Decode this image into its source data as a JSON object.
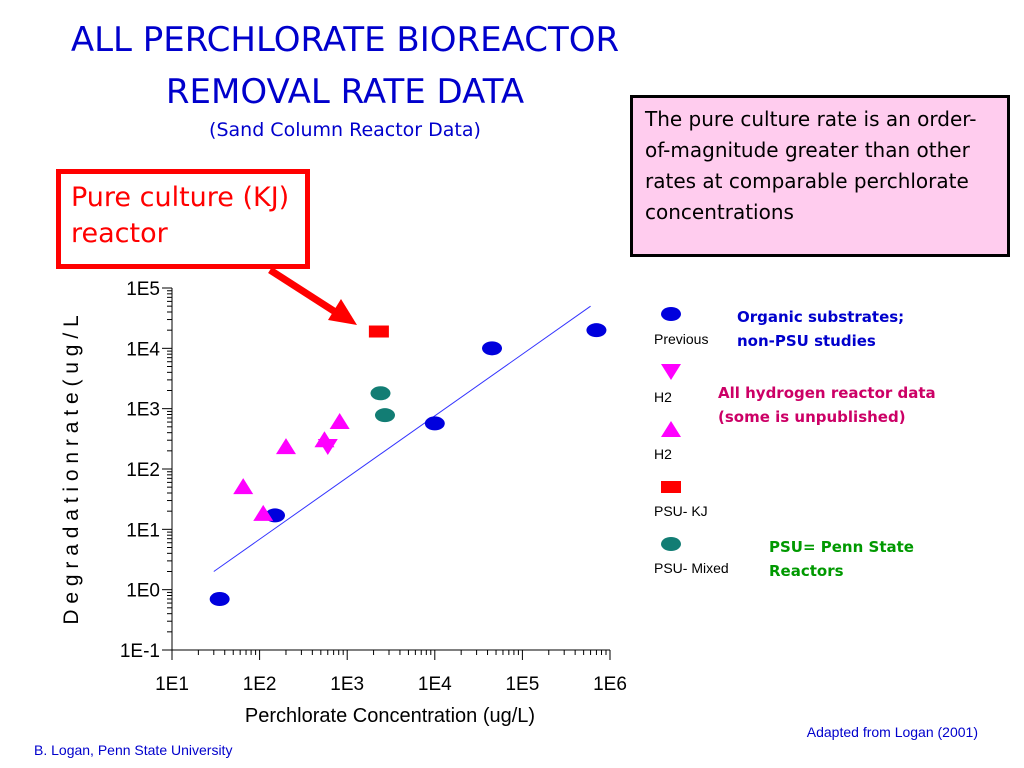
{
  "slide": {
    "title_line1": "ALL PERCHLORATE BIOREACTOR",
    "title_line2": "REMOVAL RATE DATA",
    "subtitle": "(Sand Column Reactor Data)",
    "note": "The pure culture rate is an order-of-magnitude greater than other rates at comparable perchlorate concentrations",
    "callout": "Pure culture (KJ) reactor",
    "credit": "Adapted from Logan (2001)",
    "footer": "B. Logan, Penn State University",
    "group_labels": {
      "organic": "Organic substrates; non-PSU studies",
      "hydrogen": "All hydrogen reactor data (some is unpublished)",
      "psu": "PSU= Penn State Reactors"
    }
  },
  "colors": {
    "title": "#0000cc",
    "callout": "#ff0000",
    "note_bg": "#ffccee",
    "previous": "#0000dd",
    "h2": "#ff00ff",
    "psu_kj": "#ff0000",
    "psu_mixed": "#127d74",
    "fit_line": "#3333ff",
    "organic_label": "#0000cc",
    "hydrogen_label": "#cc0066",
    "psu_label": "#009900"
  },
  "chart_data": {
    "type": "scatter",
    "x_scale": "log",
    "y_scale": "log",
    "xlabel": "Perchlorate Concentration (ug/L)",
    "ylabel": "D e g r a d a t i o n   r a t e   ( u g / L",
    "xlim": [
      10,
      1000000
    ],
    "ylim": [
      0.1,
      100000
    ],
    "x_ticks": [
      "1E1",
      "1E2",
      "1E3",
      "1E4",
      "1E5",
      "1E6"
    ],
    "y_ticks": [
      "1E5",
      "1E4",
      "1E3",
      "1E2",
      "1E1",
      "1E0",
      "1E-1"
    ],
    "series": [
      {
        "name": "Previous",
        "marker": "circle",
        "color": "#0000dd",
        "points": [
          [
            35,
            0.7
          ],
          [
            150,
            17
          ],
          [
            10000,
            570
          ],
          [
            45000,
            10000
          ],
          [
            700000,
            20000
          ]
        ]
      },
      {
        "name": "H2",
        "marker": "triangle-down",
        "color": "#ff00ff",
        "points": [
          [
            600,
            240
          ]
        ]
      },
      {
        "name": "H2",
        "marker": "triangle-up",
        "color": "#ff00ff",
        "points": [
          [
            65,
            50
          ],
          [
            110,
            18
          ],
          [
            200,
            230
          ],
          [
            550,
            300
          ],
          [
            820,
            600
          ]
        ]
      },
      {
        "name": "PSU- KJ",
        "marker": "square",
        "color": "#ff0000",
        "points": [
          [
            2300,
            19000
          ]
        ]
      },
      {
        "name": "PSU- Mixed",
        "marker": "circle",
        "color": "#127d74",
        "points": [
          [
            2400,
            1800
          ],
          [
            2700,
            780
          ]
        ]
      }
    ],
    "fit_line": {
      "points": [
        [
          30,
          2
        ],
        [
          600000,
          50000
        ]
      ]
    }
  }
}
